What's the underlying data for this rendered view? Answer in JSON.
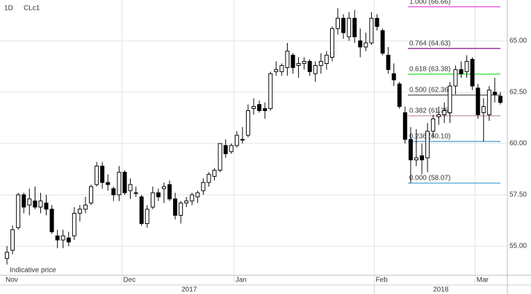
{
  "chart_data": {
    "type": "candlestick",
    "symbol": "CLc1",
    "interval": "1D",
    "note": "Indicative price",
    "categories": [
      "Nov",
      null,
      null,
      null,
      null,
      null,
      null,
      null,
      null,
      null,
      null,
      null,
      null,
      null,
      null,
      null,
      null,
      null,
      null,
      null,
      null,
      "Dec",
      null,
      null,
      null,
      null,
      null,
      null,
      null,
      null,
      null,
      null,
      null,
      null,
      null,
      null,
      null,
      null,
      null,
      null,
      null,
      "Jan",
      null,
      null,
      null,
      null,
      null,
      null,
      null,
      null,
      null,
      null,
      null,
      null,
      null,
      null,
      null,
      null,
      null,
      null,
      null,
      null,
      null,
      null,
      null,
      null,
      "Feb",
      null,
      null,
      null,
      null,
      null,
      null,
      null,
      null,
      null,
      null,
      null,
      null,
      null,
      null,
      null,
      null,
      null,
      "Mar",
      null,
      null,
      null,
      null
    ],
    "years": [
      {
        "label": "2017",
        "start": 0
      },
      {
        "label": "2018",
        "start": 66
      }
    ],
    "open": [
      54.4,
      54.8,
      55.9,
      57.5,
      57.0,
      57.2,
      56.9,
      57.1,
      56.8,
      55.5,
      55.3,
      55.4,
      55.5,
      56.6,
      56.8,
      57.1,
      58.0,
      58.9,
      58.1,
      57.8,
      57.5,
      58.6,
      57.7,
      57.6,
      57.4,
      56.1,
      56.9,
      57.6,
      57.8,
      58.0,
      57.3,
      56.5,
      57.1,
      57.2,
      57.4,
      57.7,
      58.1,
      58.4,
      58.7,
      59.9,
      59.6,
      59.9,
      60.2,
      60.4,
      61.7,
      61.9,
      61.7,
      61.7,
      63.5,
      63.5,
      63.7,
      64.3,
      63.8,
      63.9,
      64.0,
      63.4,
      63.8,
      63.9,
      64.2,
      65.6,
      66.1,
      65.2,
      66.1,
      65.0,
      64.7,
      64.9,
      66.1,
      65.5,
      64.3,
      63.4,
      62.9,
      61.5,
      60.2,
      59.2,
      59.4,
      59.3,
      60.6,
      61.3,
      61.4,
      61.5,
      62.8,
      63.6,
      63.5,
      64.1,
      62.7,
      61.5,
      61.4,
      62.5,
      62.3
    ],
    "high": [
      55.0,
      56.0,
      57.6,
      57.6,
      57.8,
      57.9,
      57.6,
      57.5,
      57.0,
      55.8,
      55.8,
      55.7,
      56.9,
      57.0,
      57.4,
      58.0,
      59.1,
      59.1,
      58.5,
      57.9,
      58.9,
      58.7,
      58.3,
      57.9,
      57.5,
      57.0,
      57.9,
      57.8,
      58.1,
      58.2,
      57.6,
      57.2,
      57.4,
      57.6,
      57.7,
      58.3,
      58.6,
      58.8,
      60.0,
      60.2,
      60.0,
      60.6,
      60.8,
      61.9,
      62.2,
      62.1,
      62.0,
      63.5,
      64.0,
      63.9,
      64.9,
      64.4,
      64.2,
      64.2,
      64.1,
      64.0,
      64.4,
      64.5,
      65.7,
      66.6,
      66.3,
      66.4,
      66.5,
      65.6,
      65.4,
      66.4,
      66.3,
      65.6,
      64.7,
      63.9,
      63.0,
      61.8,
      60.8,
      60.7,
      60.0,
      61.0,
      61.4,
      61.8,
      62.0,
      63.0,
      63.8,
      64.0,
      64.3,
      64.2,
      62.9,
      62.2,
      62.8,
      63.2,
      62.5
    ],
    "low": [
      54.1,
      54.6,
      55.8,
      56.6,
      56.5,
      56.8,
      56.6,
      56.5,
      55.6,
      54.9,
      54.9,
      55.0,
      55.3,
      56.2,
      56.6,
      57.0,
      57.9,
      57.8,
      57.7,
      57.2,
      57.2,
      57.5,
      57.3,
      57.4,
      56.0,
      55.9,
      56.8,
      57.2,
      57.1,
      57.2,
      56.3,
      56.1,
      56.9,
      57.0,
      57.1,
      57.5,
      57.9,
      58.2,
      58.6,
      59.3,
      59.5,
      59.8,
      60.0,
      60.3,
      61.4,
      61.5,
      61.2,
      61.6,
      63.3,
      63.3,
      63.3,
      63.4,
      63.2,
      63.6,
      63.3,
      63.0,
      63.4,
      63.6,
      64.0,
      65.3,
      65.1,
      65.0,
      64.9,
      64.2,
      64.5,
      64.8,
      65.5,
      64.3,
      63.4,
      62.8,
      61.7,
      60.0,
      58.07,
      58.9,
      58.5,
      58.6,
      60.3,
      60.9,
      61.0,
      61.0,
      62.4,
      63.2,
      63.2,
      62.6,
      61.2,
      60.1,
      61.1,
      62.0,
      61.9
    ],
    "close": [
      54.7,
      55.8,
      57.5,
      56.9,
      57.3,
      56.9,
      57.2,
      56.8,
      55.7,
      55.3,
      55.5,
      55.2,
      56.6,
      56.8,
      57.0,
      57.9,
      58.9,
      58.1,
      58.0,
      57.5,
      58.6,
      57.6,
      58.0,
      57.6,
      56.1,
      56.8,
      57.6,
      57.4,
      57.9,
      57.3,
      56.5,
      57.1,
      57.2,
      57.5,
      57.6,
      58.1,
      58.5,
      58.7,
      60.0,
      59.5,
      59.9,
      60.4,
      60.2,
      61.6,
      61.8,
      61.6,
      61.6,
      63.4,
      63.6,
      63.8,
      64.5,
      63.7,
      63.9,
      64.0,
      63.5,
      63.8,
      64.0,
      64.3,
      65.6,
      66.1,
      65.4,
      66.1,
      65.2,
      64.7,
      64.9,
      66.1,
      65.7,
      64.4,
      63.6,
      63.1,
      61.8,
      60.2,
      59.2,
      59.3,
      59.2,
      60.6,
      61.2,
      61.4,
      61.6,
      62.8,
      63.6,
      63.4,
      64.0,
      62.8,
      61.4,
      61.8,
      62.6,
      62.4,
      62.0
    ],
    "fib_start": 72,
    "fib_levels": [
      {
        "label": "1.000 (66.66)",
        "value": 66.66,
        "color": "#e040e0"
      },
      {
        "label": "0.764 (64.63)",
        "value": 64.63,
        "color": "#800080"
      },
      {
        "label": "0.618 (63.38)",
        "value": 63.38,
        "color": "#22dd22"
      },
      {
        "label": "0.500 (62.36)",
        "value": 62.36,
        "color": "#333333"
      },
      {
        "label": "0.382 (61.35)",
        "value": 61.35,
        "color": "#c09090"
      },
      {
        "label": "0.236 (60.10)",
        "value": 60.1,
        "color": "#3399cc"
      },
      {
        "label": "0.000 (58.07)",
        "value": 58.07,
        "color": "#3399cc"
      }
    ],
    "ylim": [
      53.58,
      66.99
    ],
    "yticks": [
      {
        "value": 55,
        "label": "55.00"
      },
      {
        "value": 57.5,
        "label": "57.50"
      },
      {
        "value": 60,
        "label": "60.00"
      },
      {
        "value": 62.5,
        "label": "62.50"
      },
      {
        "value": 65,
        "label": "65.00"
      }
    ],
    "grid": true
  }
}
